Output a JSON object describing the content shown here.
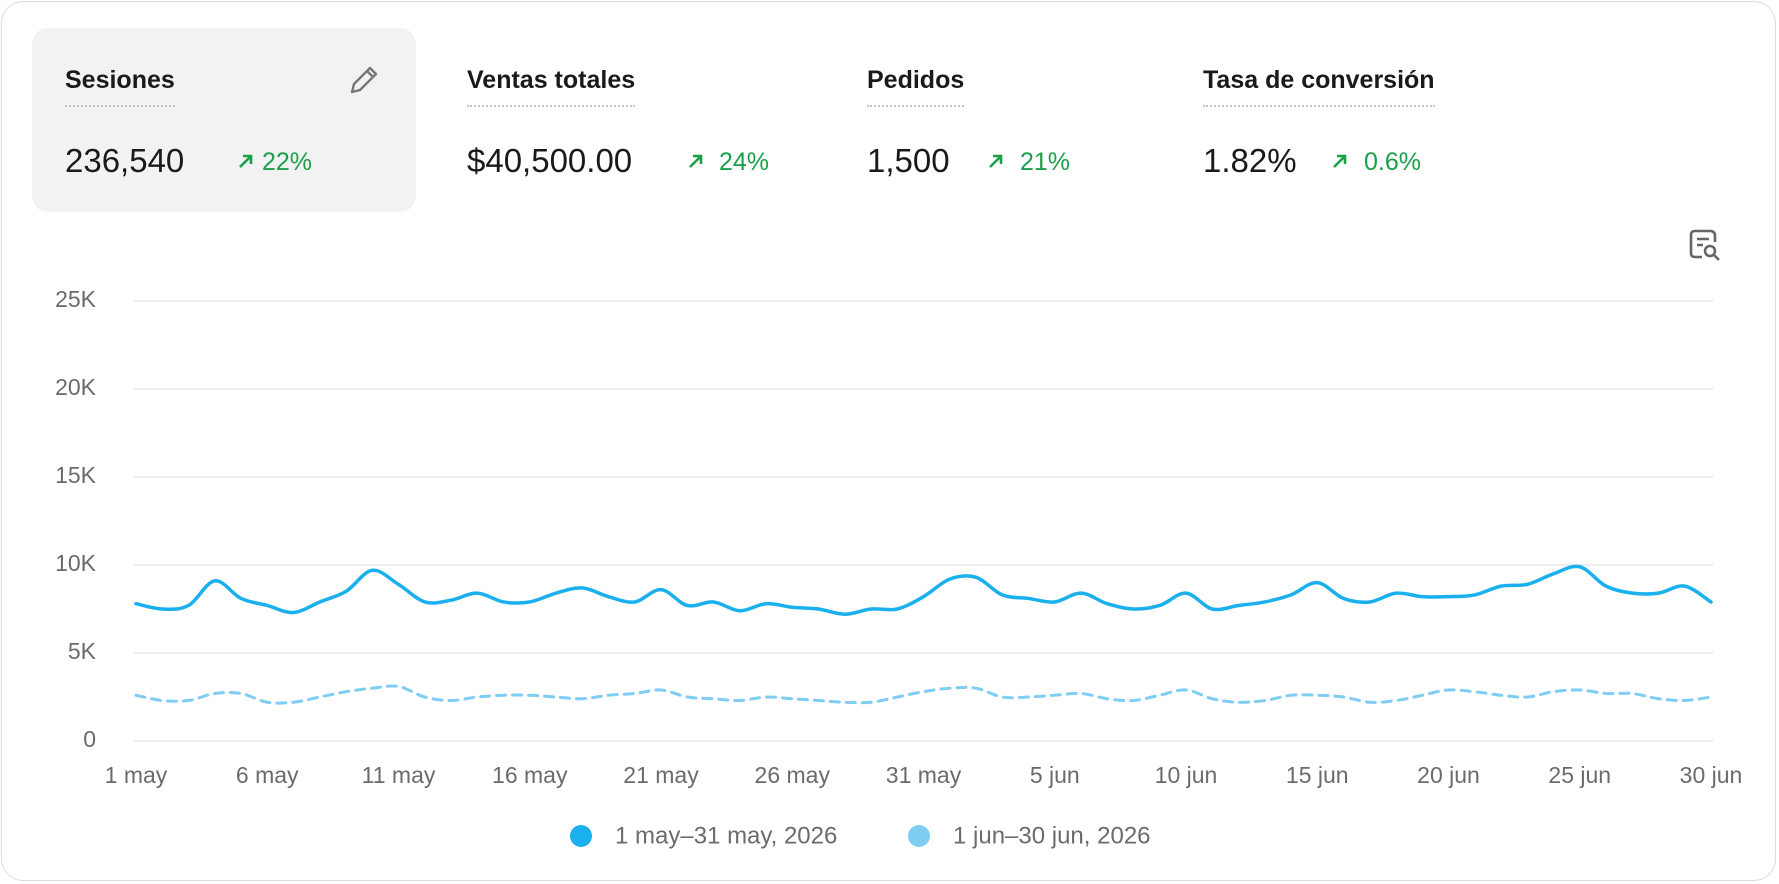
{
  "metrics": [
    {
      "label": "Sesiones",
      "value": "236,540",
      "change": "22%"
    },
    {
      "label": "Ventas totales",
      "value": "$40,500.00",
      "change": "24%"
    },
    {
      "label": "Pedidos",
      "value": "1,500",
      "change": "21%"
    },
    {
      "label": "Tasa de conversión",
      "value": "1.82%",
      "change": "0.6%"
    }
  ],
  "chart_data": {
    "type": "line",
    "categories": [
      "1 may",
      null,
      null,
      null,
      null,
      "6 may",
      null,
      null,
      null,
      null,
      "11 may",
      null,
      null,
      null,
      null,
      "16 may",
      null,
      null,
      null,
      null,
      "21 may",
      null,
      null,
      null,
      null,
      "26 may",
      null,
      null,
      null,
      null,
      "31 may",
      null,
      null,
      null,
      null,
      "5 jun",
      null,
      null,
      null,
      null,
      "10 jun",
      null,
      null,
      null,
      null,
      "15 jun",
      null,
      null,
      null,
      null,
      "20 jun",
      null,
      null,
      null,
      null,
      "25 jun",
      null,
      null,
      null,
      null,
      "30 jun"
    ],
    "series": [
      {
        "name": "1 may–31 may, 2026",
        "color": "#1ab0ee",
        "dashed": false,
        "values": [
          7800,
          7500,
          7700,
          9100,
          8100,
          7700,
          7300,
          7900,
          8500,
          9700,
          8900,
          7900,
          8000,
          8400,
          7900,
          7900,
          8400,
          8700,
          8200,
          7900,
          8600,
          7700,
          7900,
          7400,
          7800,
          7600,
          7500,
          7200,
          7500,
          7500,
          8200,
          9200,
          9300,
          8300,
          8100,
          7900,
          8400,
          7800,
          7500,
          7700,
          8400,
          7500,
          7700,
          7900,
          8300,
          9000,
          8100,
          7900,
          8400,
          8200,
          8200,
          8300,
          8800,
          8900,
          9500,
          9900,
          8800,
          8400,
          8400,
          8800,
          7900
        ]
      },
      {
        "name": "1 jun–30 jun, 2026",
        "color": "#7fcdf2",
        "dashed": true,
        "values": [
          2600,
          2300,
          2300,
          2700,
          2700,
          2200,
          2200,
          2500,
          2800,
          3000,
          3100,
          2500,
          2300,
          2500,
          2600,
          2600,
          2500,
          2400,
          2600,
          2700,
          2900,
          2500,
          2400,
          2300,
          2500,
          2400,
          2300,
          2200,
          2200,
          2500,
          2800,
          3000,
          3000,
          2500,
          2500,
          2600,
          2700,
          2400,
          2300,
          2600,
          2900,
          2400,
          2200,
          2300,
          2600,
          2600,
          2500,
          2200,
          2300,
          2600,
          2900,
          2800,
          2600,
          2500,
          2800,
          2900,
          2700,
          2700,
          2400,
          2300,
          2500
        ]
      }
    ],
    "ylim": [
      0,
      25000
    ],
    "yticks": [
      0,
      {
        "value": 5000,
        "label": "5K"
      },
      {
        "value": 10000,
        "label": "10K"
      },
      {
        "value": 15000,
        "label": "15K"
      },
      {
        "value": 20000,
        "label": "20K"
      },
      {
        "value": 25000,
        "label": "25K"
      }
    ],
    "grid": true
  }
}
